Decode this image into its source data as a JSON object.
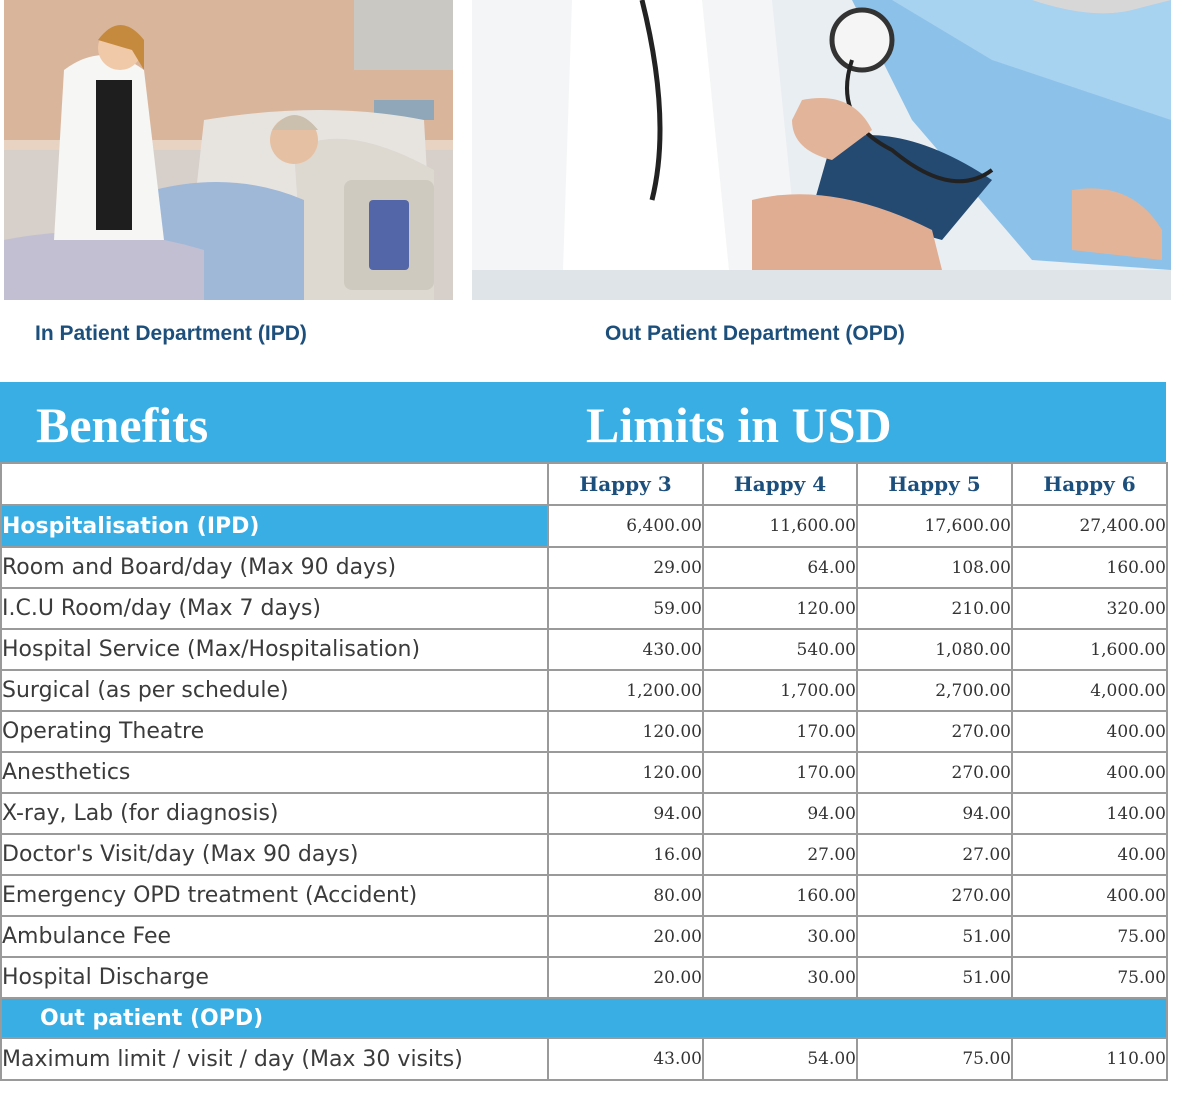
{
  "captions": {
    "ipd": "In Patient Department (IPD)",
    "opd": "Out Patient Department (OPD)"
  },
  "banner": {
    "left": "Benefits",
    "right": "Limits in USD"
  },
  "plans": [
    "Happy 3",
    "Happy 4",
    "Happy 5",
    "Happy 6"
  ],
  "ipd_section": {
    "label": "Hospitalisation (IPD)",
    "values": [
      "6,400.00",
      "11,600.00",
      "17,600.00",
      "27,400.00"
    ]
  },
  "rows": [
    {
      "label": "Room and Board/day (Max 90 days)",
      "values": [
        "29.00",
        "64.00",
        "108.00",
        "160.00"
      ]
    },
    {
      "label": "I.C.U Room/day (Max 7 days)",
      "values": [
        "59.00",
        "120.00",
        "210.00",
        "320.00"
      ]
    },
    {
      "label": "Hospital Service (Max/Hospitalisation)",
      "values": [
        "430.00",
        "540.00",
        "1,080.00",
        "1,600.00"
      ]
    },
    {
      "label": "Surgical (as per schedule)",
      "values": [
        "1,200.00",
        "1,700.00",
        "2,700.00",
        "4,000.00"
      ]
    },
    {
      "label": "Operating Theatre",
      "values": [
        "120.00",
        "170.00",
        "270.00",
        "400.00"
      ]
    },
    {
      "label": "Anesthetics",
      "values": [
        "120.00",
        "170.00",
        "270.00",
        "400.00"
      ]
    },
    {
      "label": "X-ray, Lab (for diagnosis)",
      "values": [
        "94.00",
        "94.00",
        "94.00",
        "140.00"
      ]
    },
    {
      "label": "Doctor's Visit/day (Max 90 days)",
      "values": [
        "16.00",
        "27.00",
        "27.00",
        "40.00"
      ]
    },
    {
      "label": "Emergency OPD treatment (Accident)",
      "values": [
        "80.00",
        "160.00",
        "270.00",
        "400.00"
      ]
    },
    {
      "label": "Ambulance Fee",
      "values": [
        "20.00",
        "30.00",
        "51.00",
        "75.00"
      ]
    },
    {
      "label": "Hospital Discharge",
      "values": [
        "20.00",
        "30.00",
        "51.00",
        "75.00"
      ]
    }
  ],
  "opd_section": {
    "label": "Out patient (OPD)"
  },
  "opd_rows": [
    {
      "label": "Maximum limit / visit / day (Max 30 visits)",
      "values": [
        "43.00",
        "54.00",
        "75.00",
        "110.00"
      ]
    }
  ]
}
